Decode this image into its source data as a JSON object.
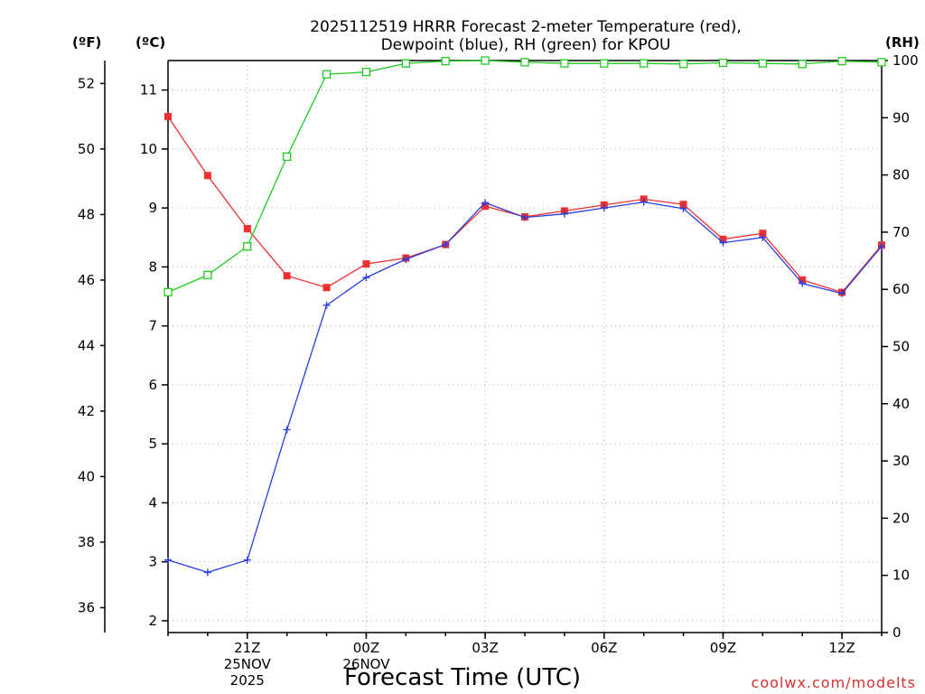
{
  "title": {
    "line1": "2025112519 HRRR Forecast 2-meter Temperature (red),",
    "line2": "Dewpoint (blue), RH (green) for KPOU"
  },
  "units": {
    "fahrenheit": "(ºF)",
    "celsius": "(ºC)",
    "rh": "(RH)"
  },
  "credit": "coolwx.com/modelts",
  "colors": {
    "temperature": "#ee3030",
    "dewpoint": "#2b3ee0",
    "rh": "#22cc22",
    "credit": "#d33030"
  },
  "chart_data": {
    "type": "line",
    "title": "2025112519 HRRR Forecast 2-meter Temperature (red), Dewpoint (blue), RH (green) for KPOU",
    "xlabel": "Forecast Time (UTC)",
    "x": [
      19,
      20,
      21,
      22,
      23,
      24,
      25,
      26,
      27,
      28,
      29,
      30,
      31,
      32,
      33,
      34,
      35,
      36,
      37
    ],
    "x_units": "hours since 00Z 25NOV2025",
    "xlim": [
      19,
      37
    ],
    "xticks": [
      {
        "x": 21,
        "label": "21Z",
        "sub1": "25NOV",
        "sub2": "2025"
      },
      {
        "x": 24,
        "label": "00Z",
        "sub1": "26NOV",
        "sub2": ""
      },
      {
        "x": 27,
        "label": "03Z",
        "sub1": "",
        "sub2": ""
      },
      {
        "x": 30,
        "label": "06Z",
        "sub1": "",
        "sub2": ""
      },
      {
        "x": 33,
        "label": "09Z",
        "sub1": "",
        "sub2": ""
      },
      {
        "x": 36,
        "label": "12Z",
        "sub1": "",
        "sub2": ""
      }
    ],
    "ylim_c": [
      1.8,
      11.5
    ],
    "yticks_c": [
      2,
      3,
      4,
      5,
      6,
      7,
      8,
      9,
      10,
      11
    ],
    "yticks_f": [
      36,
      38,
      40,
      42,
      44,
      46,
      48,
      50,
      52
    ],
    "ylim_rh": [
      0,
      100
    ],
    "yticks_rh": [
      0,
      10,
      20,
      30,
      40,
      50,
      60,
      70,
      80,
      90,
      100
    ],
    "grid": true,
    "series": [
      {
        "name": "Temperature",
        "units": "C",
        "axis": "celsius",
        "color": "#ee3030",
        "marker": "filled-square",
        "values": [
          10.55,
          9.55,
          8.65,
          7.85,
          7.65,
          8.05,
          8.15,
          8.38,
          9.03,
          8.85,
          8.95,
          9.05,
          9.15,
          9.06,
          8.47,
          8.57,
          7.78,
          7.57,
          8.37
        ]
      },
      {
        "name": "Dewpoint",
        "units": "C",
        "axis": "celsius",
        "color": "#2b3ee0",
        "marker": "plus",
        "values": [
          3.03,
          2.82,
          3.03,
          5.24,
          7.35,
          7.82,
          8.13,
          8.38,
          9.09,
          8.84,
          8.9,
          9.0,
          9.1,
          8.99,
          8.41,
          8.5,
          7.72,
          7.55,
          8.35
        ]
      },
      {
        "name": "RH",
        "units": "%",
        "axis": "rh",
        "color": "#22cc22",
        "marker": "open-square",
        "values": [
          59.5,
          62.5,
          67.5,
          83.2,
          97.6,
          98.0,
          99.5,
          99.9,
          100.0,
          99.7,
          99.5,
          99.5,
          99.5,
          99.4,
          99.6,
          99.5,
          99.4,
          99.9,
          99.7
        ]
      }
    ]
  }
}
